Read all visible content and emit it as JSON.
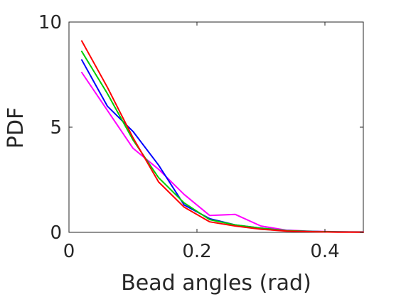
{
  "chart_data": {
    "type": "line",
    "title": "",
    "xlabel": "Bead angles (rad)",
    "ylabel": "PDF",
    "xlim": [
      0,
      0.46
    ],
    "ylim": [
      0,
      10
    ],
    "x_ticks": [
      0,
      0.2,
      0.4
    ],
    "x_tick_labels": [
      "0",
      "0.2",
      "0.4"
    ],
    "y_ticks": [
      0,
      5,
      10
    ],
    "y_tick_labels": [
      "0",
      "5",
      "10"
    ],
    "grid": false,
    "legend": "none",
    "series": [
      {
        "color": "#ff00ff",
        "x": [
          0.02,
          0.06,
          0.1,
          0.14,
          0.18,
          0.22,
          0.26,
          0.3,
          0.34,
          0.38,
          0.42,
          0.46
        ],
        "y": [
          7.6,
          5.8,
          4.0,
          3.0,
          1.8,
          0.8,
          0.85,
          0.3,
          0.1,
          0.05,
          0.03,
          0.02
        ]
      },
      {
        "color": "#0000ff",
        "x": [
          0.02,
          0.06,
          0.1,
          0.14,
          0.18,
          0.22,
          0.26,
          0.3,
          0.34,
          0.38,
          0.42,
          0.46
        ],
        "y": [
          8.2,
          6.0,
          4.8,
          3.2,
          1.3,
          0.65,
          0.35,
          0.2,
          0.08,
          0.04,
          0.02,
          0.01
        ]
      },
      {
        "color": "#00cc00",
        "x": [
          0.02,
          0.06,
          0.1,
          0.14,
          0.18,
          0.22,
          0.26,
          0.3,
          0.34,
          0.38,
          0.42,
          0.46
        ],
        "y": [
          8.6,
          6.6,
          4.4,
          2.6,
          1.4,
          0.6,
          0.35,
          0.2,
          0.08,
          0.04,
          0.02,
          0.01
        ]
      },
      {
        "color": "#ff0000",
        "x": [
          0.02,
          0.06,
          0.1,
          0.14,
          0.18,
          0.22,
          0.26,
          0.3,
          0.34,
          0.38,
          0.42,
          0.46
        ],
        "y": [
          9.1,
          6.9,
          4.5,
          2.4,
          1.2,
          0.5,
          0.3,
          0.15,
          0.06,
          0.03,
          0.01,
          0.01
        ]
      }
    ]
  }
}
